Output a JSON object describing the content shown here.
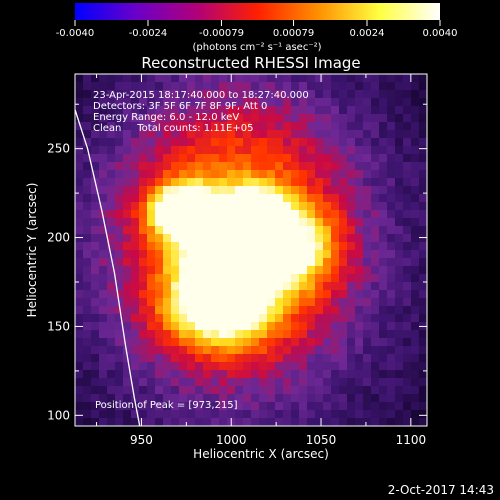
{
  "chart_data": {
    "type": "heatmap",
    "title": "Reconstructed RHESSI Image",
    "xlabel": "Heliocentric X (arcsec)",
    "ylabel": "Heliocentric Y (arcsec)",
    "xlim": [
      913,
      1109
    ],
    "ylim": [
      94,
      292
    ],
    "xticks": [
      950,
      1000,
      1050,
      1100
    ],
    "yticks": [
      100,
      150,
      200,
      250
    ],
    "colorbar": {
      "range": [
        -0.004,
        0.004
      ],
      "ticks": [
        "-0.0040",
        "-0.0024",
        "-0.00079",
        "0.00079",
        "0.0024",
        "0.0040"
      ],
      "unit_label": "(photons cm⁻² s⁻¹ asec⁻²)",
      "colors": [
        "#0000ff",
        "#6a00c8",
        "#b0007a",
        "#ff2000",
        "#ff9000",
        "#ffff40",
        "#ffffff"
      ]
    },
    "annotations": [
      "23-Apr-2015 18:17:40.000 to 18:27:40.000",
      "Detectors: 3F 5F 6F 7F 8F 9F, Att 0",
      "Energy Range: 6.0 - 12.0 keV",
      "Clean     Total counts: 1.11E+05"
    ],
    "peak_label": "Position of Peak = [973,215]",
    "peak": [
      973,
      215
    ],
    "limb_curve": [
      [
        913,
        272
      ],
      [
        920,
        250
      ],
      [
        928,
        215
      ],
      [
        935,
        180
      ],
      [
        941,
        140
      ],
      [
        946,
        110
      ],
      [
        949,
        94
      ]
    ],
    "sources": [
      {
        "x": 973,
        "y": 215,
        "amp": 1.0,
        "sx": 12,
        "sy": 10
      },
      {
        "x": 1012,
        "y": 213,
        "amp": 0.78,
        "sx": 12,
        "sy": 10
      },
      {
        "x": 1000,
        "y": 190,
        "amp": 0.82,
        "sx": 18,
        "sy": 16
      },
      {
        "x": 993,
        "y": 160,
        "amp": 0.72,
        "sx": 20,
        "sy": 15
      },
      {
        "x": 1035,
        "y": 195,
        "amp": 0.55,
        "sx": 16,
        "sy": 15
      },
      {
        "x": 1002,
        "y": 200,
        "amp": 0.5,
        "sx": 42,
        "sy": 50
      }
    ]
  },
  "footer": {
    "date": "2-Oct-2017 14:43"
  }
}
